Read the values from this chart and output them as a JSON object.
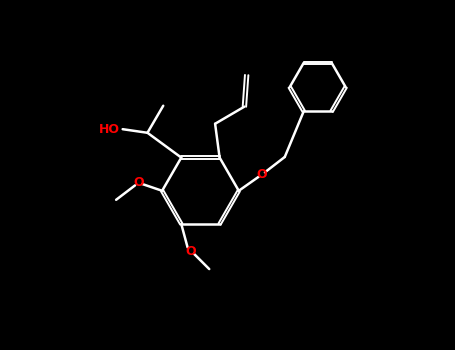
{
  "bg": "#000000",
  "bc": "#ffffff",
  "oc": "#ff0000",
  "lw": 1.8,
  "dlw": 1.4,
  "doff": 0.028,
  "figsize": [
    4.55,
    3.5
  ],
  "dpi": 100,
  "ho_text": "HO",
  "o_text": "O",
  "xlim": [
    0,
    10
  ],
  "ylim": [
    0,
    7.7
  ]
}
